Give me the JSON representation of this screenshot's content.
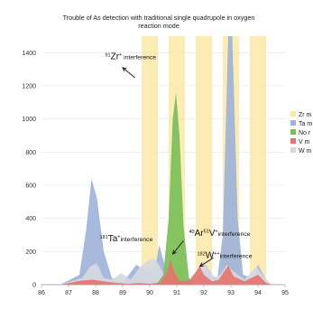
{
  "chart_data": {
    "type": "area",
    "title_lines": [
      "Trouble of As detection with traditional single quadrupole in oxygen",
      "reaction mode"
    ],
    "xlabel": "",
    "ylabel": "",
    "xlim": [
      86,
      95
    ],
    "ylim": [
      0,
      1500
    ],
    "x_ticks": [
      "86",
      "87",
      "88",
      "89",
      "90",
      "91",
      "92",
      "93",
      "94",
      "95"
    ],
    "y_ticks": [
      "0",
      "200",
      "400",
      "600",
      "800",
      "1000",
      "1200",
      "1400"
    ],
    "grid": "horizontal",
    "legend_position": "right",
    "highlight_bands": [
      {
        "x0": 89.7,
        "x1": 90.3
      },
      {
        "x0": 90.7,
        "x1": 91.3
      },
      {
        "x0": 91.7,
        "x1": 92.3
      },
      {
        "x0": 92.7,
        "x1": 93.3
      },
      {
        "x0": 93.7,
        "x1": 94.3
      }
    ],
    "series": [
      {
        "name": "Zr m",
        "color": "#fbe7a6",
        "points": []
      },
      {
        "name": "Ta m",
        "color": "#9fb3d9",
        "points": [
          [
            86.7,
            0
          ],
          [
            87.4,
            60
          ],
          [
            87.65,
            330
          ],
          [
            87.85,
            640
          ],
          [
            88.05,
            520
          ],
          [
            88.3,
            200
          ],
          [
            88.6,
            40
          ],
          [
            89.0,
            10
          ],
          [
            89.5,
            120
          ],
          [
            89.9,
            80
          ],
          [
            90.2,
            100
          ],
          [
            90.35,
            240
          ],
          [
            90.55,
            120
          ],
          [
            90.8,
            40
          ],
          [
            91.3,
            20
          ],
          [
            91.7,
            30
          ],
          [
            92.1,
            100
          ],
          [
            92.35,
            50
          ],
          [
            92.5,
            40
          ],
          [
            92.7,
            300
          ],
          [
            92.9,
            1500
          ],
          [
            93.05,
            1500
          ],
          [
            93.25,
            400
          ],
          [
            93.45,
            60
          ],
          [
            93.8,
            40
          ],
          [
            94.0,
            120
          ],
          [
            94.3,
            30
          ],
          [
            94.5,
            0
          ]
        ]
      },
      {
        "name": "No r",
        "color": "#7bbf5a",
        "points": [
          [
            90.25,
            0
          ],
          [
            90.5,
            60
          ],
          [
            90.7,
            400
          ],
          [
            90.85,
            1000
          ],
          [
            90.97,
            1160
          ],
          [
            91.1,
            900
          ],
          [
            91.25,
            350
          ],
          [
            91.45,
            40
          ],
          [
            91.6,
            0
          ]
        ]
      },
      {
        "name": "V m",
        "color": "#e8736f",
        "points": [
          [
            86.7,
            0
          ],
          [
            87.5,
            25
          ],
          [
            87.9,
            30
          ],
          [
            88.3,
            20
          ],
          [
            88.8,
            10
          ],
          [
            89.2,
            5
          ],
          [
            89.6,
            10
          ],
          [
            90.0,
            5
          ],
          [
            90.4,
            15
          ],
          [
            90.65,
            80
          ],
          [
            90.75,
            150
          ],
          [
            90.9,
            80
          ],
          [
            91.1,
            20
          ],
          [
            91.5,
            30
          ],
          [
            91.85,
            110
          ],
          [
            92.0,
            60
          ],
          [
            92.3,
            20
          ],
          [
            92.55,
            30
          ],
          [
            92.9,
            115
          ],
          [
            93.1,
            50
          ],
          [
            93.5,
            20
          ],
          [
            94.0,
            60
          ],
          [
            94.3,
            10
          ],
          [
            94.5,
            0
          ]
        ]
      },
      {
        "name": "W m",
        "color": "#d5d8e0",
        "points": [
          [
            86.7,
            0
          ],
          [
            87.5,
            40
          ],
          [
            87.8,
            110
          ],
          [
            88.05,
            130
          ],
          [
            88.3,
            40
          ],
          [
            88.6,
            30
          ],
          [
            88.95,
            70
          ],
          [
            89.3,
            30
          ],
          [
            89.6,
            100
          ],
          [
            89.9,
            140
          ],
          [
            90.15,
            160
          ],
          [
            90.35,
            120
          ],
          [
            90.6,
            40
          ],
          [
            91.0,
            20
          ],
          [
            91.4,
            30
          ],
          [
            91.75,
            80
          ],
          [
            91.9,
            140
          ],
          [
            92.1,
            120
          ],
          [
            92.4,
            40
          ],
          [
            92.6,
            60
          ],
          [
            92.85,
            120
          ],
          [
            93.1,
            80
          ],
          [
            93.5,
            30
          ],
          [
            93.95,
            110
          ],
          [
            94.25,
            40
          ],
          [
            94.5,
            0
          ]
        ]
      }
    ],
    "annotations": [
      {
        "prefix": "91",
        "main": "Zr",
        "sup": "+",
        "text": " interference",
        "x": 88.35,
        "y": 1360,
        "arrow": {
          "from": [
            89.45,
            1250
          ],
          "to": [
            89.0,
            1310
          ]
        }
      },
      {
        "prefix": "181",
        "main": "Ta",
        "sup": "+",
        "text": "interference",
        "x": 88.15,
        "y": 262,
        "arrow": null
      },
      {
        "prefix": "40",
        "main": "Ar",
        "sup": "51",
        "main2": "V",
        "sup2": "+",
        "text": "interference",
        "x": 91.45,
        "y": 295,
        "arrow": {
          "from": [
            91.25,
            265
          ],
          "to": [
            90.85,
            185
          ]
        }
      },
      {
        "prefix": "182",
        "main": "W",
        "sup": "++",
        "text": "interference",
        "x": 91.75,
        "y": 162,
        "arrow": {
          "from": [
            92.35,
            162
          ],
          "to": [
            91.85,
            110
          ]
        }
      }
    ]
  }
}
